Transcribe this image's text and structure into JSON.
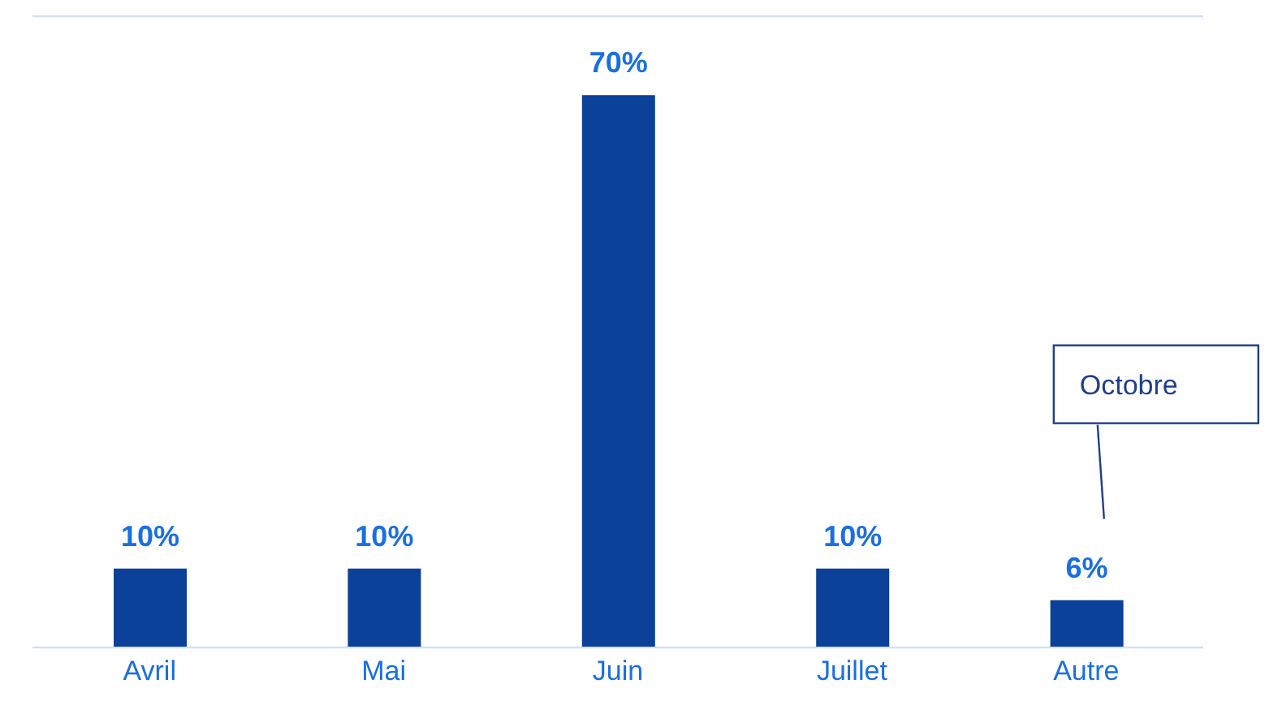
{
  "chart_data": {
    "type": "bar",
    "categories": [
      "Avril",
      "Mai",
      "Juin",
      "Juillet",
      "Autre"
    ],
    "values": [
      10,
      10,
      70,
      10,
      6
    ],
    "color": "#0b4199",
    "value_labels": [
      "10%",
      "10%",
      "70%",
      "10%",
      "6%"
    ],
    "ylim": [
      0,
      80
    ],
    "tick_labels": "x",
    "grid": "y",
    "annotations": [
      "Octobre"
    ]
  }
}
